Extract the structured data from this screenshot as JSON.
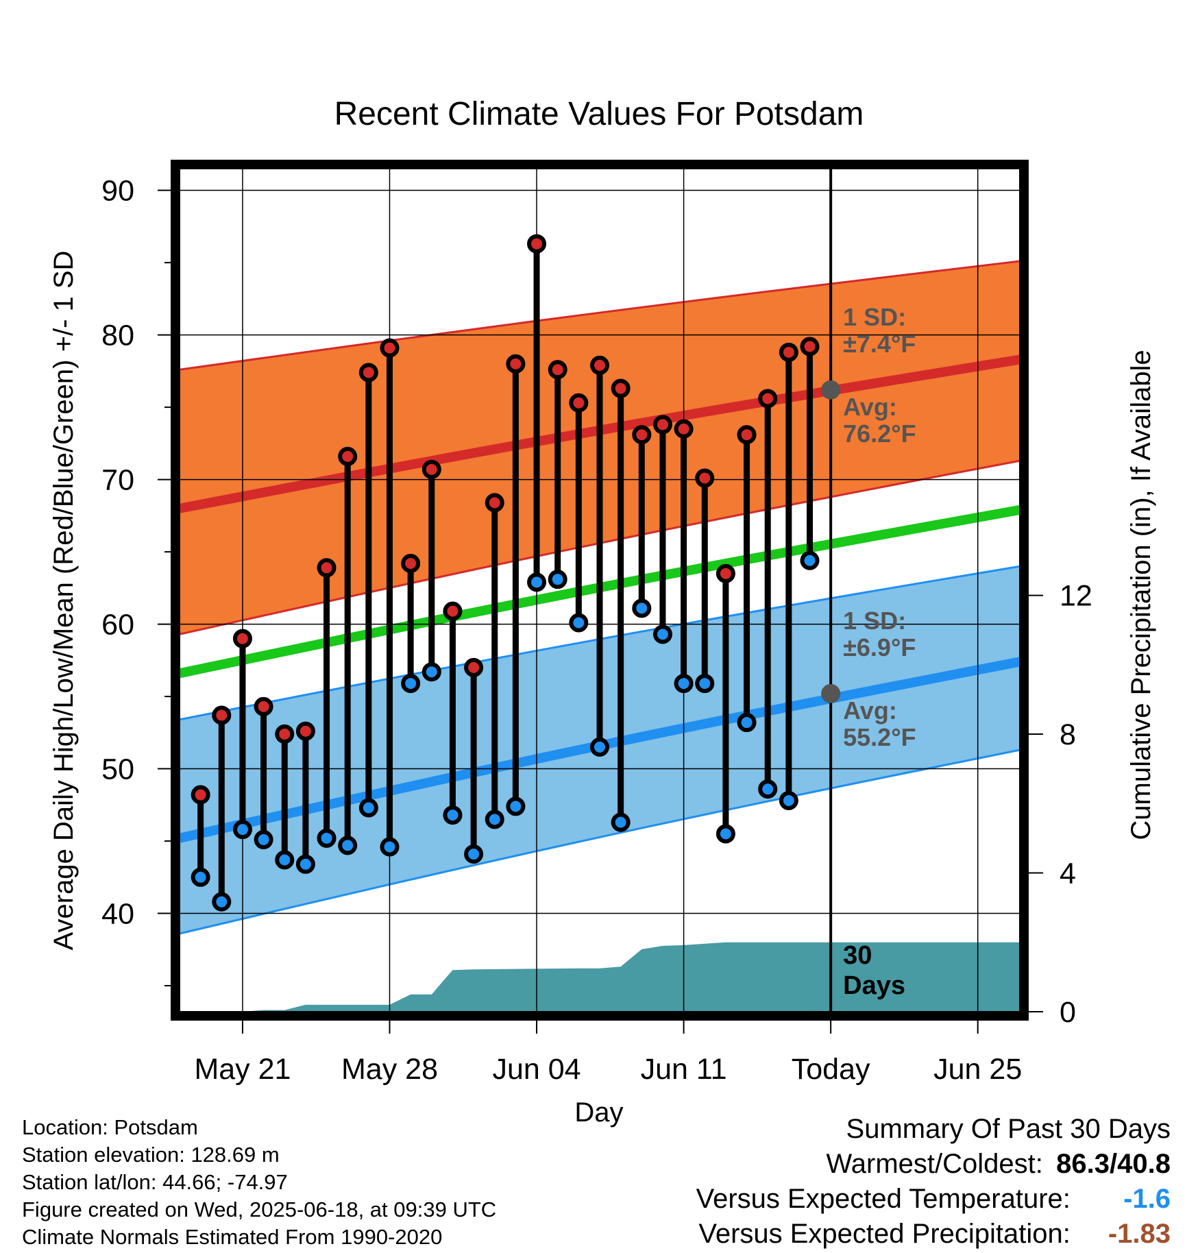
{
  "chart_data": {
    "type": "line",
    "title": "Recent Climate Values For Potsdam",
    "xlabel": "Day",
    "ylabel": "Average Daily High/Low/Mean (Red/Blue/Green) +/- 1 SD",
    "ylabel_right": "Cumulative Precipitation (in), If Available",
    "x_tick_labels": [
      "May 21",
      "May 28",
      "Jun 04",
      "Jun 11",
      "Today",
      "Jun 25"
    ],
    "x_tick_dates": [
      "2025-05-21",
      "2025-05-28",
      "2025-06-04",
      "2025-06-11",
      "2025-06-18",
      "2025-06-25"
    ],
    "x_range": [
      "2025-05-18",
      "2025-06-27"
    ],
    "today": "2025-06-18",
    "ylim": [
      33.2,
      91.5
    ],
    "y_ticks": [
      40,
      50,
      60,
      70,
      80,
      90
    ],
    "y2lim": [
      0,
      24.3
    ],
    "y2_ticks": [
      0,
      4,
      8,
      12
    ],
    "grid": true,
    "colors": {
      "high": "#d42a2a",
      "high_band": "#f37a32",
      "low": "#1f8ff0",
      "low_band": "#82c1e8",
      "mean": "#19c819",
      "precip": "#489aa3",
      "annotation": "#555555",
      "temp_anomaly": "#1f8ff0",
      "precip_anomaly": "#a0522d"
    },
    "normals": {
      "dates": [
        "2025-05-18",
        "2025-06-27"
      ],
      "high_avg": [
        68.0,
        78.3
      ],
      "high_upper": [
        77.6,
        85.1
      ],
      "high_lower": [
        59.3,
        71.3
      ],
      "low_avg": [
        45.2,
        57.4
      ],
      "low_upper": [
        53.4,
        64.0
      ],
      "low_lower": [
        38.6,
        51.3
      ],
      "mean": [
        56.6,
        67.9
      ]
    },
    "series": [
      {
        "dates": [
          "2025-05-19",
          "2025-05-20",
          "2025-05-21",
          "2025-05-22",
          "2025-05-23",
          "2025-05-24",
          "2025-05-25",
          "2025-05-26",
          "2025-05-27",
          "2025-05-28",
          "2025-05-29",
          "2025-05-30",
          "2025-05-31",
          "2025-06-01",
          "2025-06-02",
          "2025-06-03",
          "2025-06-04",
          "2025-06-05",
          "2025-06-06",
          "2025-06-07",
          "2025-06-08",
          "2025-06-09",
          "2025-06-10",
          "2025-06-11",
          "2025-06-12",
          "2025-06-13",
          "2025-06-14",
          "2025-06-15",
          "2025-06-16",
          "2025-06-17"
        ],
        "high": [
          48.2,
          53.7,
          59.0,
          54.3,
          52.4,
          52.6,
          63.9,
          71.6,
          77.4,
          79.1,
          64.2,
          70.7,
          60.9,
          57.0,
          68.4,
          78.0,
          86.3,
          77.6,
          75.3,
          77.9,
          76.3,
          73.1,
          73.8,
          73.5,
          70.1,
          63.5,
          73.1,
          75.6,
          78.8,
          79.2
        ],
        "low": [
          42.5,
          40.8,
          45.8,
          45.1,
          43.7,
          43.4,
          45.2,
          44.7,
          47.3,
          44.6,
          55.9,
          56.7,
          46.8,
          44.1,
          46.5,
          47.4,
          62.9,
          63.1,
          60.1,
          51.5,
          46.3,
          61.1,
          59.3,
          55.9,
          55.9,
          45.5,
          53.2,
          48.6,
          47.8,
          64.4
        ]
      }
    ],
    "precip_cumulative": {
      "dates": [
        "2025-05-18",
        "2025-05-20",
        "2025-05-21",
        "2025-05-22",
        "2025-05-23",
        "2025-05-24",
        "2025-05-28",
        "2025-05-29",
        "2025-05-30",
        "2025-05-31",
        "2025-06-01",
        "2025-06-06",
        "2025-06-07",
        "2025-06-08",
        "2025-06-09",
        "2025-06-10",
        "2025-06-11",
        "2025-06-12",
        "2025-06-13",
        "2025-06-14",
        "2025-06-18",
        "2025-06-27"
      ],
      "values": [
        0,
        0,
        0,
        0.05,
        0.05,
        0.2,
        0.2,
        0.5,
        0.5,
        1.2,
        1.22,
        1.25,
        1.25,
        1.3,
        1.8,
        1.9,
        1.92,
        1.96,
        2.0,
        2.0,
        2.0,
        2.0
      ]
    },
    "annotations": {
      "high_sd_label": "1 SD:",
      "high_sd_value": "±7.4°F",
      "high_avg_label": "Avg:",
      "high_avg_value": "76.2°F",
      "today_high_avg": 76.2,
      "low_sd_label": "1 SD:",
      "low_sd_value": "±6.9°F",
      "low_avg_label": "Avg:",
      "low_avg_value": "55.2°F",
      "today_low_avg": 55.2,
      "days_label_1": "30",
      "days_label_2": "Days"
    }
  },
  "footer": {
    "location": "Location: Potsdam",
    "elevation": "Station elevation: 128.69 m",
    "latlon": "Station lat/lon: 44.66; -74.97",
    "created": "Figure created on Wed, 2025-06-18, at 09:39 UTC",
    "normals": "Climate Normals Estimated From 1990-2020"
  },
  "summary": {
    "title": "Summary Of Past 30 Days",
    "warmest_coldest_label": "Warmest/Coldest:",
    "warmest_coldest_value": "86.3/40.8",
    "temp_label": "Versus Expected Temperature:",
    "temp_value": "-1.6",
    "precip_label": "Versus Expected Precipitation:",
    "precip_value": "-1.83"
  }
}
